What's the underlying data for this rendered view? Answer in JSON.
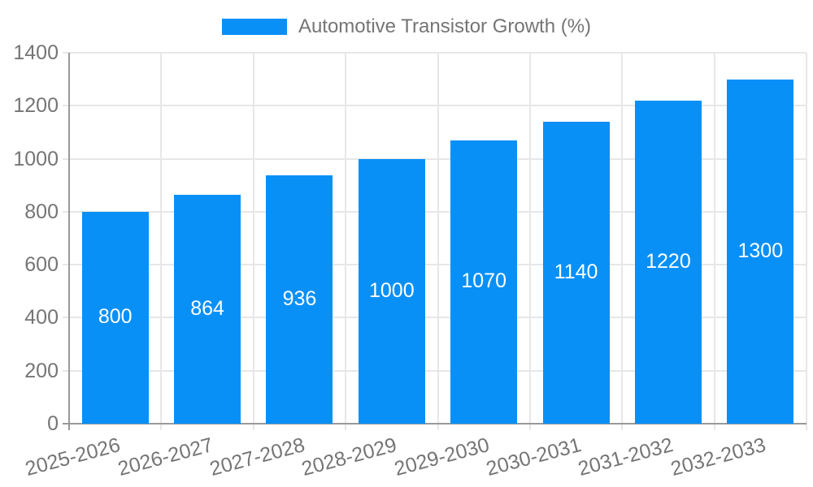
{
  "chart_data": {
    "type": "bar",
    "title": "",
    "legend": {
      "label": "Automotive Transistor Growth (%)",
      "position": "top"
    },
    "categories": [
      "2025-2026",
      "2026-2027",
      "2027-2028",
      "2028-2029",
      "2029-2030",
      "2030-2031",
      "2031-2032",
      "2032-2033"
    ],
    "series": [
      {
        "name": "Automotive Transistor Growth (%)",
        "values": [
          800,
          864,
          936,
          1000,
          1070,
          1140,
          1220,
          1300
        ],
        "color": "#0890F7"
      }
    ],
    "xlabel": "",
    "ylabel": "",
    "ylim": [
      0,
      1400
    ],
    "yticks": [
      0,
      200,
      400,
      600,
      800,
      1000,
      1200,
      1400
    ],
    "grid": true,
    "x_tick_rotation_deg": -15
  },
  "colors": {
    "bar": "#0890F7",
    "axis_line": "#999999",
    "grid_line": "#E7E7E7",
    "tick_text": "#757575",
    "legend_text": "#757575",
    "bar_label": "#FFFFFF",
    "background": "#FFFFFF"
  }
}
